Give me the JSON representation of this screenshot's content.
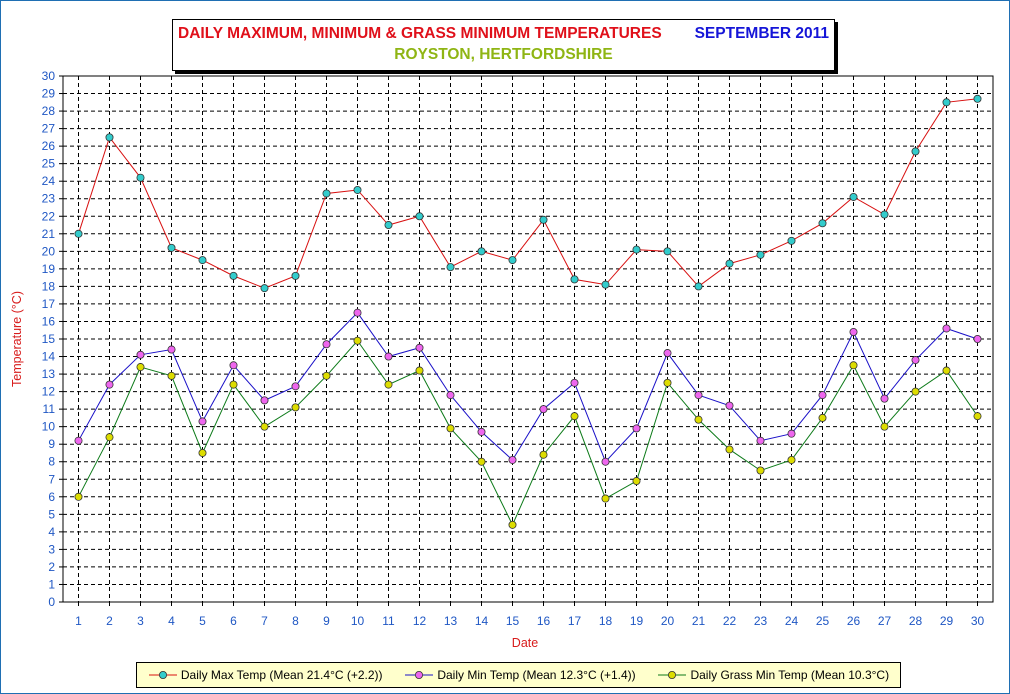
{
  "title": {
    "main": "DAILY MAXIMUM, MINIMUM & GRASS MINIMUM TEMPERATURES",
    "period": "SEPTEMBER 2011",
    "location": "ROYSTON, HERTFORDSHIRE"
  },
  "colors": {
    "title_main": "#e0101a",
    "title_period": "#1515d8",
    "title_location": "#8fb514",
    "axis_text": "#1f57c4",
    "ylabel": "#d81c1c",
    "xlabel": "#d81c1c",
    "grid": "#000000"
  },
  "chart_data": {
    "type": "line",
    "xlabel": "Date",
    "ylabel": "Temperature (°C)",
    "x": [
      1,
      2,
      3,
      4,
      5,
      6,
      7,
      8,
      9,
      10,
      11,
      12,
      13,
      14,
      15,
      16,
      17,
      18,
      19,
      20,
      21,
      22,
      23,
      24,
      25,
      26,
      27,
      28,
      29,
      30
    ],
    "xlim": [
      0.5,
      30.5
    ],
    "ylim": [
      0,
      30
    ],
    "yticks": [
      0,
      1,
      2,
      3,
      4,
      5,
      6,
      7,
      8,
      9,
      10,
      11,
      12,
      13,
      14,
      15,
      16,
      17,
      18,
      19,
      20,
      21,
      22,
      23,
      24,
      25,
      26,
      27,
      28,
      29,
      30
    ],
    "grid": true,
    "legend_position": "bottom",
    "series": [
      {
        "name": "Daily Max Temp (Mean 21.4°C (+2.2))",
        "line_color": "#d81010",
        "marker_color": "#33cccc",
        "values": [
          21.0,
          26.5,
          24.2,
          20.2,
          19.5,
          18.6,
          17.9,
          18.6,
          23.3,
          23.5,
          21.5,
          22.0,
          19.1,
          20.0,
          19.5,
          21.8,
          18.4,
          18.1,
          20.1,
          20.0,
          18.0,
          19.3,
          19.8,
          20.6,
          21.6,
          23.1,
          22.1,
          25.7,
          28.5,
          28.7
        ]
      },
      {
        "name": "Daily Min Temp (Mean 12.3°C (+1.4))",
        "line_color": "#1a10c8",
        "marker_color": "#ee66ee",
        "values": [
          9.2,
          12.4,
          14.1,
          14.4,
          10.3,
          13.5,
          11.5,
          12.3,
          14.7,
          16.5,
          14.0,
          14.5,
          11.8,
          9.7,
          8.1,
          11.0,
          12.5,
          8.0,
          9.9,
          14.2,
          11.8,
          11.2,
          9.2,
          9.6,
          11.8,
          15.4,
          11.6,
          13.8,
          15.6,
          15.0
        ]
      },
      {
        "name": "Daily Grass Min Temp (Mean 10.3°C)",
        "line_color": "#0c7a18",
        "marker_color": "#dddd00",
        "values": [
          6.0,
          9.4,
          13.4,
          12.9,
          8.5,
          12.4,
          10.0,
          11.1,
          12.9,
          14.9,
          12.4,
          13.2,
          9.9,
          8.0,
          4.4,
          8.4,
          10.6,
          5.9,
          6.9,
          12.5,
          10.4,
          8.7,
          7.5,
          8.1,
          10.5,
          13.5,
          10.0,
          12.0,
          13.2,
          10.6
        ]
      }
    ]
  }
}
